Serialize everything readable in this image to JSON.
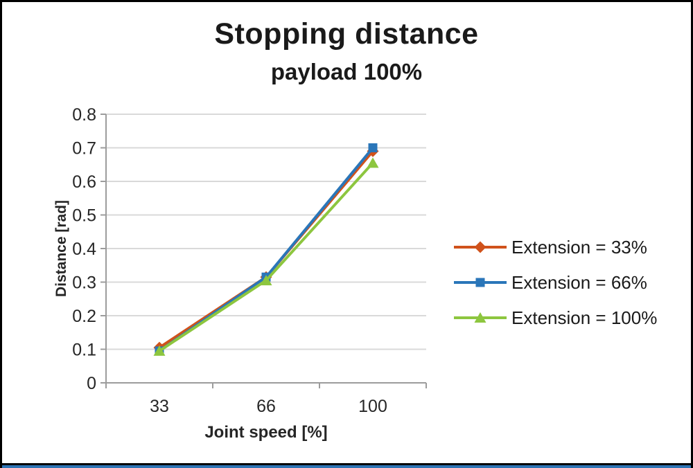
{
  "chart_data": {
    "type": "line",
    "title": "Stopping distance",
    "subtitle": "payload 100%",
    "xlabel": "Joint speed [%]",
    "ylabel": "Distance [rad]",
    "categories": [
      "33",
      "66",
      "100"
    ],
    "x_values": [
      33,
      66,
      100
    ],
    "series": [
      {
        "name": "Extension = 33%",
        "values": [
          0.105,
          0.315,
          0.69
        ],
        "color": "#d0521b",
        "marker": "diamond"
      },
      {
        "name": "Extension = 66%",
        "values": [
          0.095,
          0.315,
          0.7
        ],
        "color": "#2a76b9",
        "marker": "square"
      },
      {
        "name": "Extension = 100%",
        "values": [
          0.095,
          0.305,
          0.655
        ],
        "color": "#8dc63f",
        "marker": "triangle"
      }
    ],
    "ylim": [
      0,
      0.8
    ],
    "ytick_step": 0.1,
    "ytick_labels": [
      "0",
      "0.1",
      "0.2",
      "0.3",
      "0.4",
      "0.5",
      "0.6",
      "0.7",
      "0.8"
    ],
    "grid": true,
    "legend_position": "right"
  },
  "colors": {
    "grid": "#d9d9d9",
    "axis": "#9c9c9c",
    "tick_text": "#262626",
    "title_text": "#1a1a1a",
    "frame_border": "#000000",
    "bottom_edge": "#2e74b5"
  }
}
